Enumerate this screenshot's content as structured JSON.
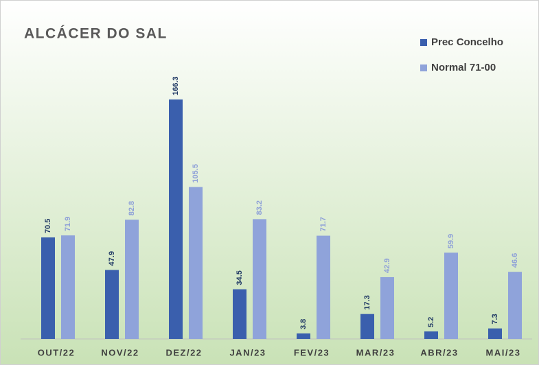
{
  "chart_data": {
    "type": "bar",
    "title": "ALCÁCER DO SAL",
    "categories": [
      "OUT/22",
      "NOV/22",
      "DEZ/22",
      "JAN/23",
      "FEV/23",
      "MAR/23",
      "ABR/23",
      "MAI/23"
    ],
    "series": [
      {
        "name": "Prec Concelho",
        "color": "#3a5fad",
        "values": [
          70.5,
          47.9,
          166.3,
          34.5,
          3.8,
          17.3,
          5.2,
          7.3
        ]
      },
      {
        "name": "Normal 71-00",
        "color": "#8fa3da",
        "values": [
          71.9,
          82.8,
          105.5,
          83.2,
          71.7,
          42.9,
          59.9,
          46.6
        ]
      }
    ],
    "legend": "top-right"
  }
}
